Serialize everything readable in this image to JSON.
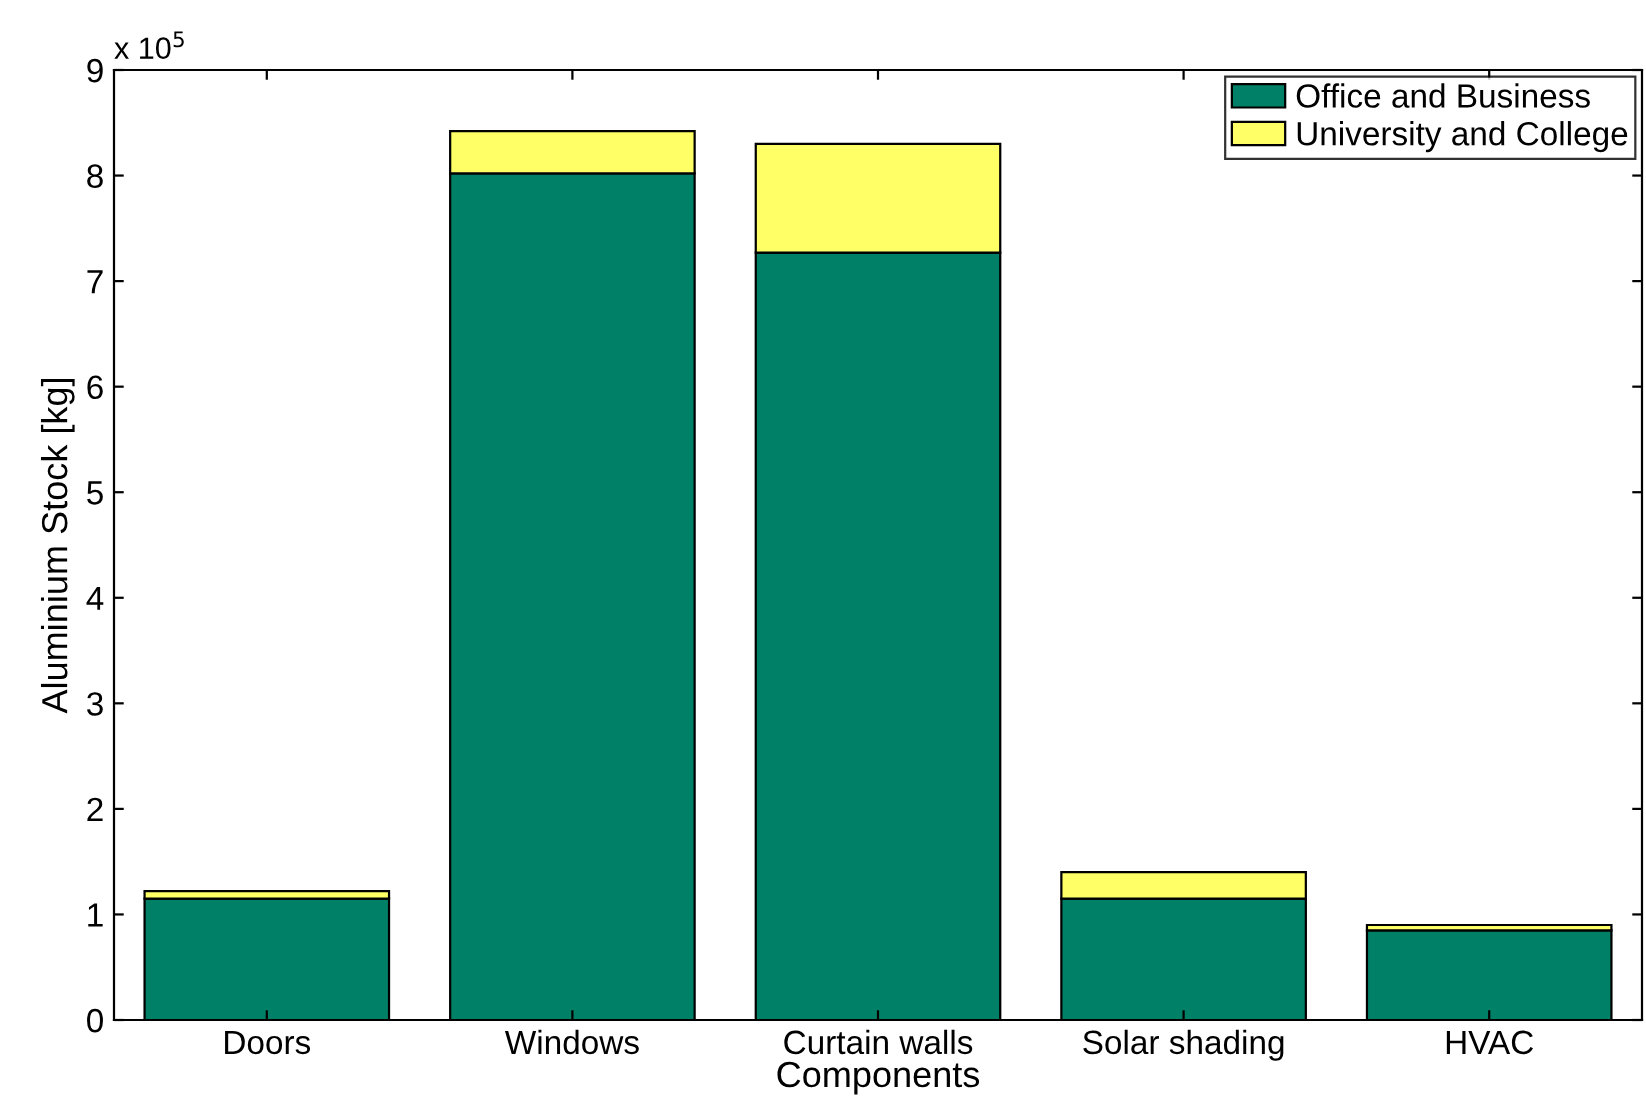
{
  "chart_data": {
    "type": "bar",
    "stacked": true,
    "xlabel": "Components",
    "ylabel": "Aluminium Stock [kg]",
    "categories": [
      "Doors",
      "Windows",
      "Curtain walls",
      "Solar shading",
      "HVAC"
    ],
    "series": [
      {
        "name": "Office and Business",
        "color": "#008066",
        "values": [
          1.15,
          8.02,
          7.27,
          1.15,
          0.85
        ]
      },
      {
        "name": "University and College",
        "color": "#ffff66",
        "values": [
          0.07,
          0.4,
          1.03,
          0.25,
          0.05
        ]
      }
    ],
    "ylim": [
      0,
      9
    ],
    "yticks": [
      0,
      1,
      2,
      3,
      4,
      5,
      6,
      7,
      8,
      9
    ],
    "annotations": [
      "x 10$^{5}$"
    ],
    "legend": "top right",
    "grid": false
  }
}
